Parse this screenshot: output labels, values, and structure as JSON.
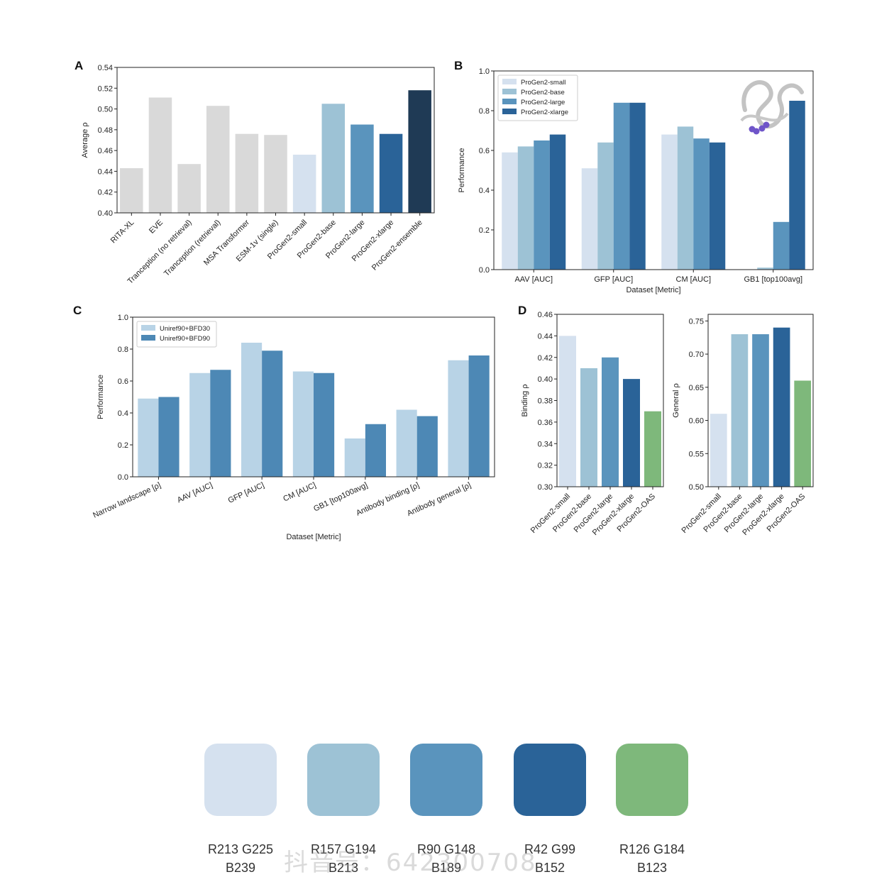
{
  "palette": [
    {
      "color": "#d5e1ef",
      "label_line1": "R213 G225",
      "label_line2": "B239"
    },
    {
      "color": "#9dc2d5",
      "label_line1": "R157 G194",
      "label_line2": "B213"
    },
    {
      "color": "#5a94bd",
      "label_line1": "R90 G148",
      "label_line2": "B189"
    },
    {
      "color": "#2a6398",
      "label_line1": "R42 G99",
      "label_line2": "B152"
    },
    {
      "color": "#7eb87b",
      "label_line1": "R126 G184",
      "label_line2": "B123"
    }
  ],
  "watermark": "抖音号：642300708",
  "chart_data": [
    {
      "panel": "A",
      "type": "bar",
      "title": "",
      "xlabel": "",
      "ylabel": "Average ρ",
      "ylim": [
        0.4,
        0.54
      ],
      "yticks": [
        "0.40",
        "0.42",
        "0.44",
        "0.46",
        "0.48",
        "0.50",
        "0.52",
        "0.54"
      ],
      "categories": [
        "RITA-XL",
        "EVE",
        "Tranception (no retrieval)",
        "Tranception (retrieval)",
        "MSA Transformer",
        "ESM-1v (single)",
        "ProGen2-small",
        "ProGen2-base",
        "ProGen2-large",
        "ProGen2-xlarge",
        "ProGen2-ensemble"
      ],
      "values": [
        0.443,
        0.511,
        0.447,
        0.503,
        0.476,
        0.475,
        0.456,
        0.505,
        0.485,
        0.476,
        0.518
      ],
      "colors": [
        "#d9d9d9",
        "#d9d9d9",
        "#d9d9d9",
        "#d9d9d9",
        "#d9d9d9",
        "#d9d9d9",
        "#d5e1ef",
        "#9dc2d5",
        "#5a94bd",
        "#2a6398",
        "#1f3a55"
      ]
    },
    {
      "panel": "B",
      "type": "bar",
      "title": "",
      "xlabel": "Dataset [Metric]",
      "ylabel": "Performance",
      "ylim": [
        0.0,
        1.0
      ],
      "yticks": [
        "0.0",
        "0.2",
        "0.4",
        "0.6",
        "0.8",
        "1.0"
      ],
      "categories": [
        "AAV [AUC]",
        "GFP [AUC]",
        "CM [AUC]",
        "GB1 [top100avg]"
      ],
      "series": [
        {
          "name": "ProGen2-small",
          "color": "#d5e1ef",
          "values": [
            0.59,
            0.51,
            0.68,
            0.0
          ]
        },
        {
          "name": "ProGen2-base",
          "color": "#9dc2d5",
          "values": [
            0.62,
            0.64,
            0.72,
            0.01
          ]
        },
        {
          "name": "ProGen2-large",
          "color": "#5a94bd",
          "values": [
            0.65,
            0.84,
            0.66,
            0.24
          ]
        },
        {
          "name": "ProGen2-xlarge",
          "color": "#2a6398",
          "values": [
            0.68,
            0.84,
            0.64,
            0.85
          ]
        }
      ],
      "legend": "top-left"
    },
    {
      "panel": "C",
      "type": "bar",
      "title": "",
      "xlabel": "Dataset [Metric]",
      "ylabel": "Performance",
      "ylim": [
        0.0,
        1.0
      ],
      "yticks": [
        "0.0",
        "0.2",
        "0.4",
        "0.6",
        "0.8",
        "1.0"
      ],
      "categories": [
        "Narrow landscape [ρ]",
        "AAV [AUC]",
        "GFP [AUC]",
        "CM [AUC]",
        "GB1 [top100avg]",
        "Antibody binding [ρ]",
        "Antibody general [ρ]"
      ],
      "series": [
        {
          "name": "Uniref90+BFD30",
          "color": "#b8d3e6",
          "values": [
            0.49,
            0.65,
            0.84,
            0.66,
            0.24,
            0.42,
            0.73
          ]
        },
        {
          "name": "Uniref90+BFD90",
          "color": "#4d88b5",
          "values": [
            0.5,
            0.67,
            0.79,
            0.65,
            0.33,
            0.38,
            0.76
          ]
        }
      ],
      "legend": "top-left"
    },
    {
      "panel": "D",
      "type": "bar",
      "title": "",
      "xlabel": "",
      "ylabel": "Binding ρ",
      "ylim": [
        0.3,
        0.46
      ],
      "yticks": [
        "0.30",
        "0.32",
        "0.34",
        "0.36",
        "0.38",
        "0.40",
        "0.42",
        "0.44",
        "0.46"
      ],
      "categories": [
        "ProGen2-small",
        "ProGen2-base",
        "ProGen2-large",
        "ProGen2-xlarge",
        "ProGen2-OAS"
      ],
      "values": [
        0.44,
        0.41,
        0.42,
        0.4,
        0.37
      ],
      "colors": [
        "#d5e1ef",
        "#9dc2d5",
        "#5a94bd",
        "#2a6398",
        "#7eb87b"
      ]
    },
    {
      "panel": "",
      "type": "bar",
      "title": "",
      "xlabel": "",
      "ylabel": "General ρ",
      "ylim": [
        0.5,
        0.76
      ],
      "yticks": [
        "0.50",
        "0.55",
        "0.60",
        "0.65",
        "0.70",
        "0.75"
      ],
      "categories": [
        "ProGen2-small",
        "ProGen2-base",
        "ProGen2-large",
        "ProGen2-xlarge",
        "ProGen2-OAS"
      ],
      "values": [
        0.61,
        0.73,
        0.73,
        0.74,
        0.66
      ],
      "colors": [
        "#d5e1ef",
        "#9dc2d5",
        "#5a94bd",
        "#2a6398",
        "#7eb87b"
      ]
    }
  ]
}
